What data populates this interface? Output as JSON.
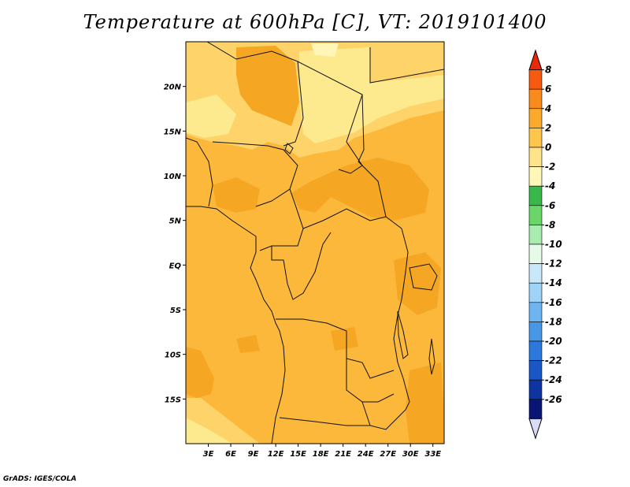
{
  "title": "Temperature at 600hPa [C], VT: 2019101400",
  "credit": "GrADS: IGES/COLA",
  "map": {
    "lon_range": [
      0,
      34.5
    ],
    "lat_range": [
      -20,
      25
    ],
    "lat_ticks": [
      {
        "value": 20,
        "label": "20N"
      },
      {
        "value": 15,
        "label": "15N"
      },
      {
        "value": 10,
        "label": "10N"
      },
      {
        "value": 5,
        "label": "5N"
      },
      {
        "value": 0,
        "label": "EQ"
      },
      {
        "value": -5,
        "label": "5S"
      },
      {
        "value": -10,
        "label": "10S"
      },
      {
        "value": -15,
        "label": "15S"
      }
    ],
    "lon_ticks": [
      {
        "value": 3,
        "label": "3E"
      },
      {
        "value": 6,
        "label": "6E"
      },
      {
        "value": 9,
        "label": "9E"
      },
      {
        "value": 12,
        "label": "12E"
      },
      {
        "value": 15,
        "label": "15E"
      },
      {
        "value": 18,
        "label": "18E"
      },
      {
        "value": 21,
        "label": "21E"
      },
      {
        "value": 24,
        "label": "24E"
      },
      {
        "value": 27,
        "label": "27E"
      },
      {
        "value": 30,
        "label": "30E"
      },
      {
        "value": 33,
        "label": "33E"
      }
    ],
    "field_colors": {
      "above_4": "#f5a623",
      "2_to_4": "#fbb83a",
      "0_to_2": "#fdd36a",
      "minus2_to_0": "#feea8e",
      "minus4_to_minus2": "#fff6b8"
    }
  },
  "colorbar": {
    "levels": [
      "8",
      "6",
      "4",
      "2",
      "0",
      "-2",
      "-4",
      "-6",
      "-8",
      "-10",
      "-12",
      "-14",
      "-16",
      "-18",
      "-20",
      "-22",
      "-24",
      "-26"
    ],
    "colors": [
      "#e82a0a",
      "#f55a10",
      "#f98a1c",
      "#fbaa2c",
      "#fdc64a",
      "#fee38a",
      "#fff6b8",
      "#38b84a",
      "#6ad66a",
      "#a8ecb0",
      "#e6fae8",
      "#c8e8fa",
      "#9ed2f6",
      "#6eb4f0",
      "#4896e6",
      "#2c78dc",
      "#1a56c4",
      "#0e34a2",
      "#0a1474",
      "#d8dcf6"
    ]
  }
}
